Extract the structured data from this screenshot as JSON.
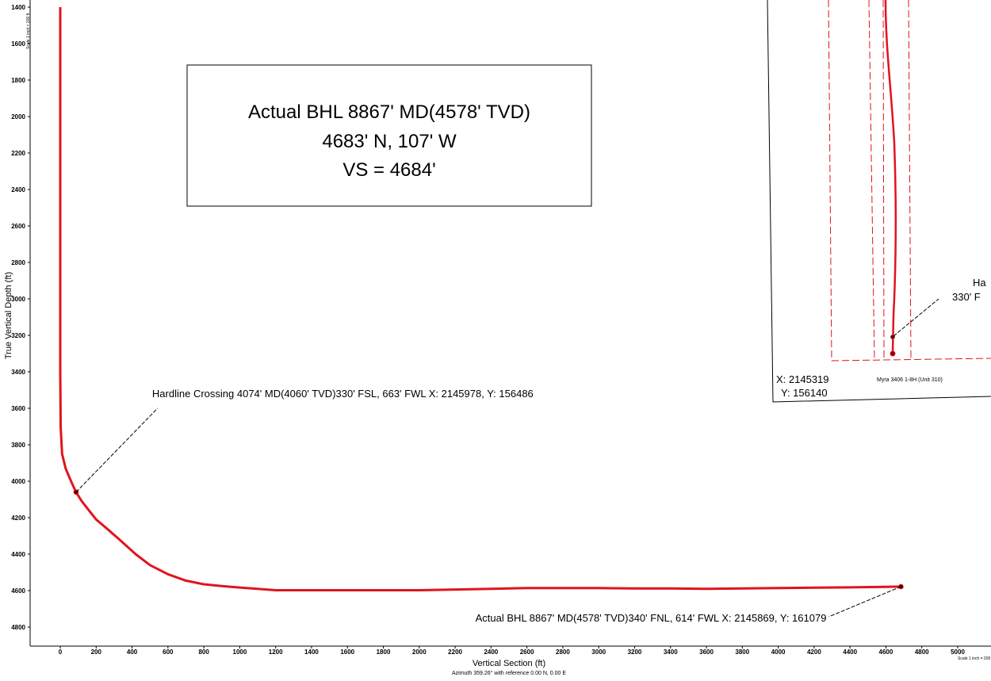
{
  "chart_data": {
    "type": "line",
    "xlabel": "Vertical Section (ft)",
    "x_sublabel": "Azimuth 359.26° with reference 0.00 N, 0.00 E",
    "ylabel": "True Vertical Depth (ft)",
    "xlim": [
      -100,
      5000
    ],
    "ylim": [
      1400,
      4860
    ],
    "y_inverted": true,
    "x_ticks": [
      0,
      200,
      400,
      600,
      800,
      1000,
      1200,
      1400,
      1600,
      1800,
      2000,
      2200,
      2400,
      2600,
      2800,
      3000,
      3200,
      3400,
      3600,
      3800,
      4000,
      4200,
      4400,
      4600,
      4800,
      5000
    ],
    "y_ticks": [
      1400,
      1600,
      1800,
      2000,
      2200,
      2400,
      2600,
      2800,
      3000,
      3200,
      3400,
      3600,
      3800,
      4000,
      4200,
      4400,
      4600,
      4800
    ],
    "grid": false,
    "scale_label_y": "Scale 1 inch = 200 ft",
    "scale_label_x": "Scale 1 inch = 200",
    "series": [
      {
        "color": "#e0141e",
        "x": [
          0,
          0,
          0,
          2,
          10,
          30,
          60,
          88,
          120,
          160,
          200,
          260,
          330,
          420,
          500,
          600,
          700,
          800,
          900,
          1000,
          1100,
          1200,
          1400,
          1600,
          1800,
          2000,
          2200,
          2400,
          2600,
          2800,
          3000,
          3200,
          3400,
          3600,
          3800,
          4000,
          4200,
          4400,
          4600,
          4684
        ],
        "y": [
          1400,
          2500,
          3400,
          3700,
          3850,
          3930,
          4000,
          4060,
          4110,
          4160,
          4210,
          4260,
          4320,
          4400,
          4460,
          4510,
          4545,
          4565,
          4575,
          4583,
          4590,
          4598,
          4598,
          4598,
          4598,
          4598,
          4594,
          4590,
          4586,
          4586,
          4586,
          4588,
          4588,
          4590,
          4588,
          4586,
          4584,
          4582,
          4579,
          4578
        ]
      }
    ],
    "markers": [
      {
        "name": "hardline-crossing-point",
        "x": 88,
        "y": 4060
      },
      {
        "name": "actual-bhl-point",
        "x": 4684,
        "y": 4578
      }
    ],
    "annotations": {
      "hardline": "Hardline Crossing 4074' MD(4060' TVD)330' FSL, 663' FWL X: 2145978, Y: 156486",
      "bhl": "Actual BHL 8867' MD(4578' TVD)340' FNL, 614' FWL X: 2145869, Y: 161079"
    },
    "info_box": {
      "line1": "Actual BHL 8867' MD(4578' TVD)",
      "line2": "4683' N, 107' W",
      "line3": "VS = 4684'"
    }
  },
  "plan_inset": {
    "label_x": "X: 2145319",
    "label_y": "Y: 156140",
    "well_name": "Myra 3406 1-8H (Unit 310)",
    "cut_label_1": "Ha",
    "cut_label_2": "330' F"
  },
  "colors": {
    "well": "#e0141e",
    "boundary": "#e0141e",
    "axis": "#000000"
  }
}
